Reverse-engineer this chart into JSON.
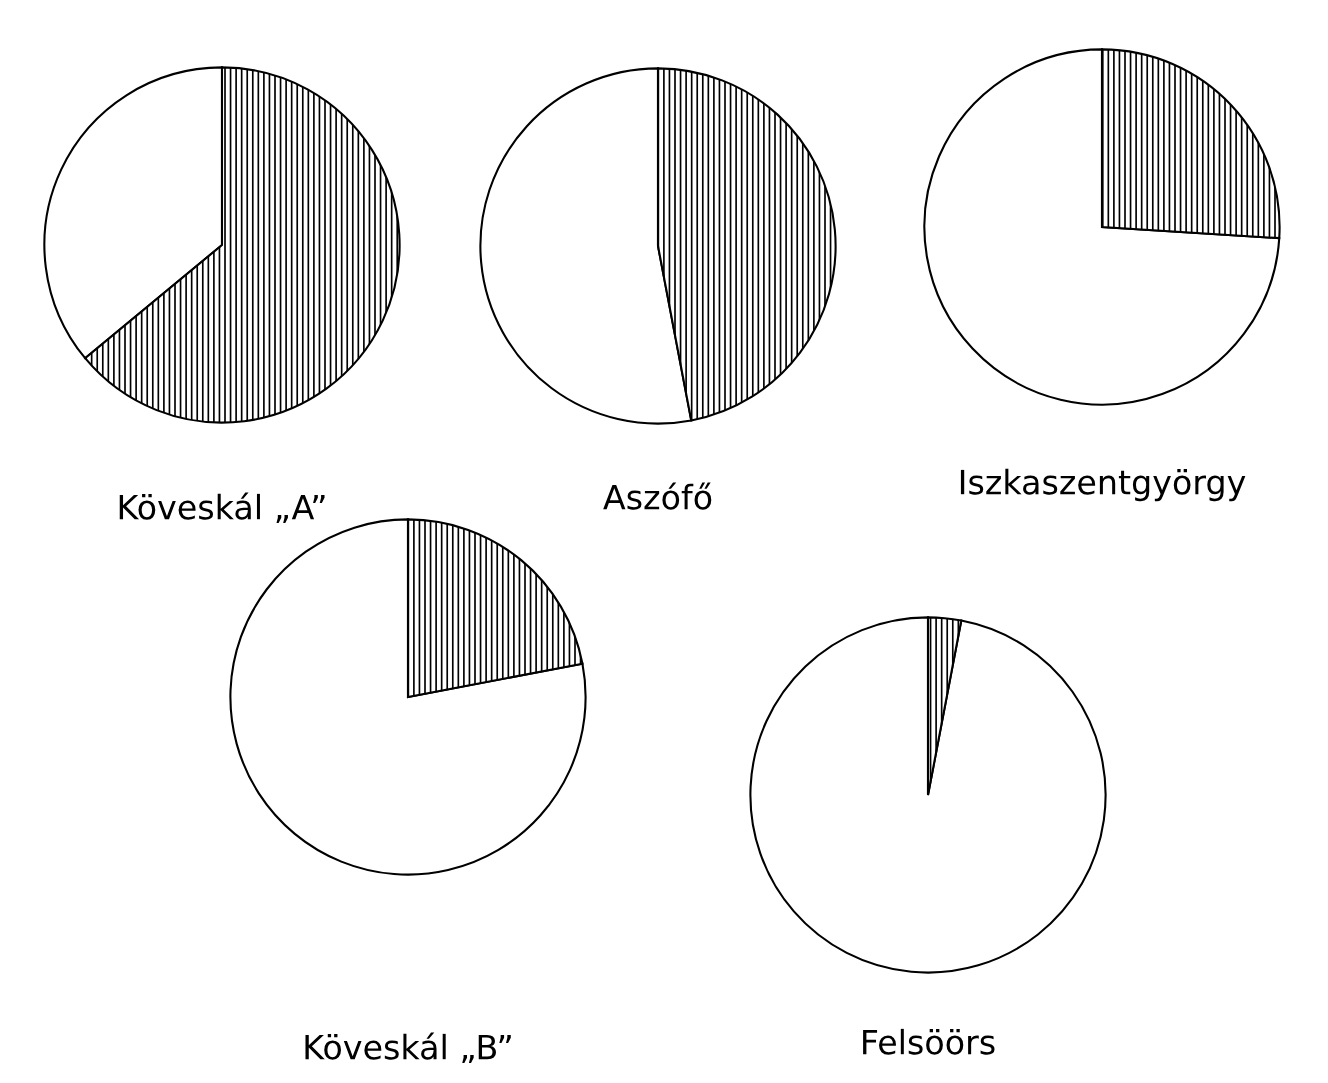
{
  "chart_data": [
    {
      "type": "pie",
      "title": "Köveskál „A”",
      "categories": [
        null,
        null
      ],
      "values": [
        36,
        64
      ],
      "colors": [
        "#ffffff",
        "#000000"
      ]
    },
    {
      "type": "pie",
      "title": "Aszófő",
      "categories": [
        null,
        null
      ],
      "values": [
        53,
        47
      ],
      "colors": [
        "#ffffff",
        "#000000"
      ]
    },
    {
      "type": "pie",
      "title": "Iszkaszentgyörgy",
      "categories": [
        null,
        null
      ],
      "values": [
        74,
        26
      ],
      "colors": [
        "#ffffff",
        "#000000"
      ]
    },
    {
      "type": "pie",
      "title": "Köveskál „B”",
      "categories": [
        null,
        null
      ],
      "values": [
        78,
        22
      ],
      "colors": [
        "#ffffff",
        "#000000"
      ]
    },
    {
      "type": "pie",
      "title": "Felsöörs",
      "categories": [
        null,
        null
      ],
      "values": [
        97,
        3
      ],
      "colors": [
        "#ffffff",
        "#000000"
      ]
    }
  ]
}
